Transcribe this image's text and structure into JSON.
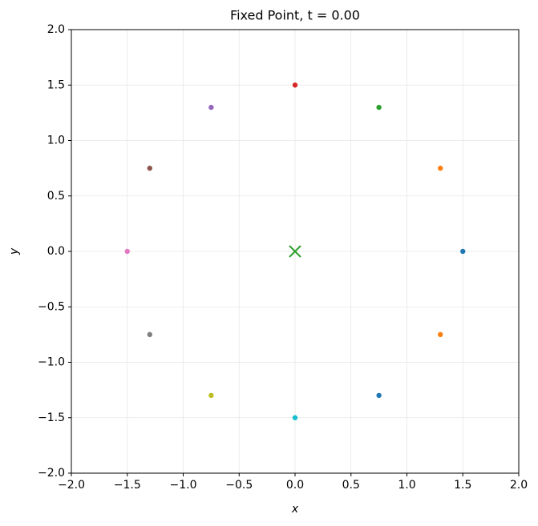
{
  "chart_data": {
    "type": "scatter",
    "title": "Fixed Point, t = 0.00",
    "x_label": "x",
    "y_label": "y",
    "x": [
      1.5,
      1.299,
      0.75,
      0,
      -0.75,
      -1.299,
      -1.5,
      -1.299,
      -0.75,
      0,
      0.75,
      1.299
    ],
    "values": [
      0,
      0.75,
      1.299,
      1.5,
      1.299,
      0.75,
      0,
      -0.75,
      -1.299,
      -1.5,
      -1.299,
      -0.75
    ],
    "colors": [
      "#1f77b4",
      "#ff7f0e",
      "#2ca02c",
      "#d62728",
      "#9467bd",
      "#8c564b",
      "#e377c2",
      "#7f7f7f",
      "#bcbd22",
      "#17becf",
      "#1f77b4",
      "#ff7f0e"
    ],
    "fixed_point": {
      "x": 0,
      "y": 0,
      "color": "#2ca02c",
      "marker": "x"
    },
    "xlim": [
      -2,
      2
    ],
    "ylim": [
      -2,
      2
    ],
    "xticks": [
      {
        "value": -2,
        "label": "−2.0"
      },
      {
        "value": -1.5,
        "label": "−1.5"
      },
      {
        "value": -1,
        "label": "−1.0"
      },
      {
        "value": -0.5,
        "label": "−0.5"
      },
      {
        "value": 0,
        "label": "0.0"
      },
      {
        "value": 0.5,
        "label": "0.5"
      },
      {
        "value": 1,
        "label": "1.0"
      },
      {
        "value": 1.5,
        "label": "1.5"
      },
      {
        "value": 2,
        "label": "2.0"
      }
    ],
    "yticks": [
      {
        "value": -2,
        "label": "−2.0"
      },
      {
        "value": -1.5,
        "label": "−1.5"
      },
      {
        "value": -1,
        "label": "−1.0"
      },
      {
        "value": -0.5,
        "label": "−0.5"
      },
      {
        "value": 0,
        "label": "0.0"
      },
      {
        "value": 0.5,
        "label": "0.5"
      },
      {
        "value": 1,
        "label": "1.0"
      },
      {
        "value": 1.5,
        "label": "1.5"
      },
      {
        "value": 2,
        "label": "2.0"
      }
    ],
    "grid": true
  }
}
